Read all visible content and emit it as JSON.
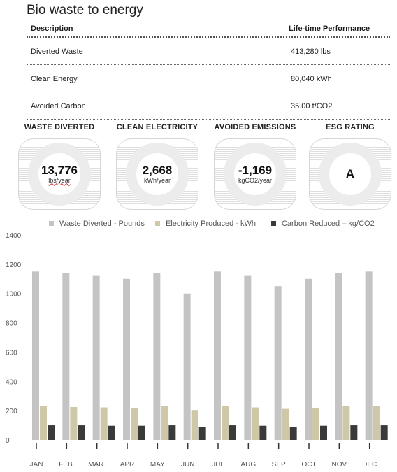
{
  "title": "Bio waste to energy",
  "table": {
    "headers": [
      "Description",
      "Life-time Performance"
    ],
    "rows": [
      {
        "label": "Diverted Waste",
        "value": "413,280 lbs"
      },
      {
        "label": "Clean Energy",
        "value": "80,040 kWh"
      },
      {
        "label": "Avoided Carbon",
        "value": "35.00 t/CO2"
      }
    ]
  },
  "kpis": [
    {
      "title": "WASTE DIVERTED",
      "value": "13,776",
      "unit": "lbs/year"
    },
    {
      "title": "CLEAN ELECTRICITY",
      "value": "2,668",
      "unit": "kWh/year"
    },
    {
      "title": "AVOIDED EMISSIONS",
      "value": "-1,169",
      "unit": "kgCO2/year"
    },
    {
      "title": "ESG RATING",
      "value": "A",
      "unit": ""
    }
  ],
  "chart_data": {
    "type": "bar",
    "categories": [
      "JAN",
      "FEB.",
      "MAR.",
      "APR",
      "MAY",
      "JUN",
      "JUL",
      "AUG",
      "SEP",
      "OCT",
      "NOV",
      "DEC"
    ],
    "series": [
      {
        "name": "Waste Diverted - Pounds",
        "color": "#c4c4c4",
        "values": [
          1150,
          1140,
          1125,
          1100,
          1140,
          1000,
          1150,
          1125,
          1050,
          1100,
          1140,
          1150
        ]
      },
      {
        "name": "Electricity Produced - kWh",
        "color": "#cec7a8",
        "values": [
          230,
          225,
          222,
          220,
          230,
          200,
          230,
          222,
          212,
          220,
          230,
          230
        ]
      },
      {
        "name": "Carbon Reduced – kg/CO2",
        "color": "#3a3a3a",
        "values": [
          100,
          100,
          97,
          97,
          100,
          87,
          100,
          97,
          90,
          97,
          100,
          100
        ]
      }
    ],
    "y_ticks": [
      0,
      200,
      400,
      600,
      800,
      1000,
      1200,
      1400
    ],
    "ylim": [
      0,
      1400
    ],
    "legend": "top",
    "grid": false
  }
}
